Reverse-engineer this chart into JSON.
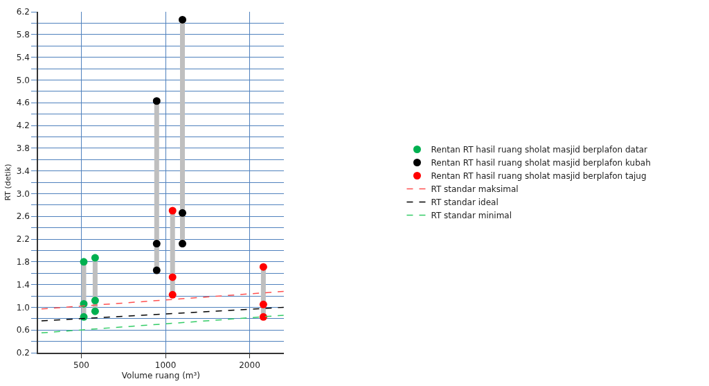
{
  "chart_data": {
    "type": "scatter",
    "xlabel": "Volume ruang (m³)",
    "ylabel": "RT (detik)",
    "series": [
      {
        "type": "line",
        "marker": "none",
        "color": "#bfbfbf",
        "x": [
          510,
          510,
          null,
          560,
          560,
          null,
          930,
          930,
          null,
          1150,
          1150,
          null,
          1060,
          1060,
          null,
          2240,
          2240
        ],
        "values": [
          0.83,
          1.8,
          null,
          0.93,
          1.87,
          null,
          1.65,
          4.63,
          null,
          2.12,
          6.06,
          null,
          1.22,
          2.7,
          null,
          0.83,
          1.71
        ]
      },
      {
        "name": "Rentan RT hasil ruang sholat masjid berplafon datar",
        "color": "#00b050",
        "x": [
          510,
          510,
          510,
          560,
          560,
          560
        ],
        "values": [
          1.8,
          1.06,
          0.83,
          1.87,
          1.12,
          0.93
        ]
      },
      {
        "name": "Rentan RT hasil ruang sholat masjid berplafon kubah",
        "color": "#000000",
        "x": [
          930,
          930,
          930,
          1150,
          1150,
          1150
        ],
        "values": [
          4.63,
          2.12,
          1.65,
          6.06,
          2.66,
          2.12
        ]
      },
      {
        "name": "Rentan RT hasil ruang sholat masjid berplafon tajug",
        "color": "#ff0000",
        "x": [
          1060,
          1060,
          1060,
          2240,
          2240,
          2240
        ],
        "values": [
          2.7,
          1.53,
          1.22,
          1.71,
          1.05,
          0.83
        ]
      },
      {
        "type": "line",
        "marker": "none",
        "name": "RT standar maksimal",
        "color": "#ff5050",
        "line_style": "dashed",
        "x": [
          360,
          2650
        ],
        "values": [
          0.97,
          1.28
        ]
      },
      {
        "type": "line",
        "marker": "none",
        "name": "RT standar ideal",
        "color": "#000000",
        "line_style": "dashed",
        "x": [
          360,
          2650
        ],
        "values": [
          0.76,
          1.0
        ]
      },
      {
        "type": "line",
        "marker": "none",
        "name": "RT standar minimal",
        "color": "#33cc66",
        "line_style": "dashed",
        "x": [
          360,
          2650
        ],
        "values": [
          0.55,
          0.86
        ]
      }
    ],
    "log": "x",
    "marker": "circle",
    "xlim": [
      350,
      2650
    ],
    "xticks": [
      500,
      1000,
      2000
    ],
    "ylim": [
      0.2,
      6.2
    ],
    "yticks": [
      0.2,
      {
        "value": 0.4,
        "label": null
      },
      0.6,
      {
        "value": 0.8,
        "label": null
      },
      {
        "value": 1.0,
        "label": "1.0"
      },
      {
        "value": 1.2,
        "label": null
      },
      1.4,
      {
        "value": 1.6,
        "label": null
      },
      1.8,
      {
        "value": 2.0,
        "label": null
      },
      2.2,
      {
        "value": 2.4,
        "label": null
      },
      2.6,
      {
        "value": 2.8,
        "label": null
      },
      {
        "value": 3.0,
        "label": "3.0"
      },
      {
        "value": 3.2,
        "label": null
      },
      3.4,
      {
        "value": 3.6,
        "label": null
      },
      3.8,
      {
        "value": 4.0,
        "label": null
      },
      4.2,
      {
        "value": 4.4,
        "label": null
      },
      4.6,
      {
        "value": 4.8,
        "label": null
      },
      {
        "value": 5.0,
        "label": "5.0"
      },
      {
        "value": 5.2,
        "label": null
      },
      5.4,
      {
        "value": 5.6,
        "label": null
      },
      5.8,
      {
        "value": 6.0,
        "label": null
      },
      6.2
    ],
    "grid": true,
    "legend": "right"
  }
}
